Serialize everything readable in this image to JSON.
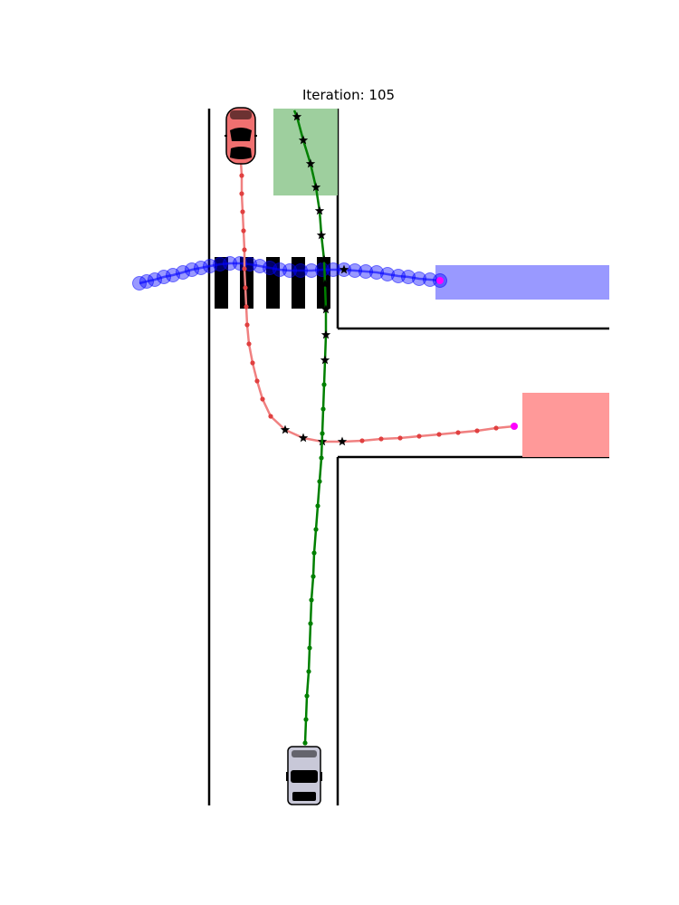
{
  "title": {
    "prefix": "Iteration: ",
    "iteration": "105"
  },
  "colors": {
    "ego_path": "#008000",
    "ego_goal": "#99cc99",
    "red_path": "#f08080",
    "red_points": "#e04040",
    "red_goal": "#ff9999",
    "blue_path": "#0000ff",
    "blue_goal": "#9999ff",
    "endpoint": "#ff00ff",
    "crosswalk": "#000000",
    "ego_car": "#c8c8d8",
    "red_car": "#f07070"
  },
  "icons": {
    "ego_vehicle": "car-top-view-icon",
    "red_vehicle": "car-top-view-icon",
    "marker": "star-icon"
  },
  "chart_data": {
    "type": "scatter",
    "series": [
      {
        "trajectory": "green"
      },
      {
        "trajectory": "red"
      },
      {
        "trajectory": "blue"
      }
    ]
  }
}
